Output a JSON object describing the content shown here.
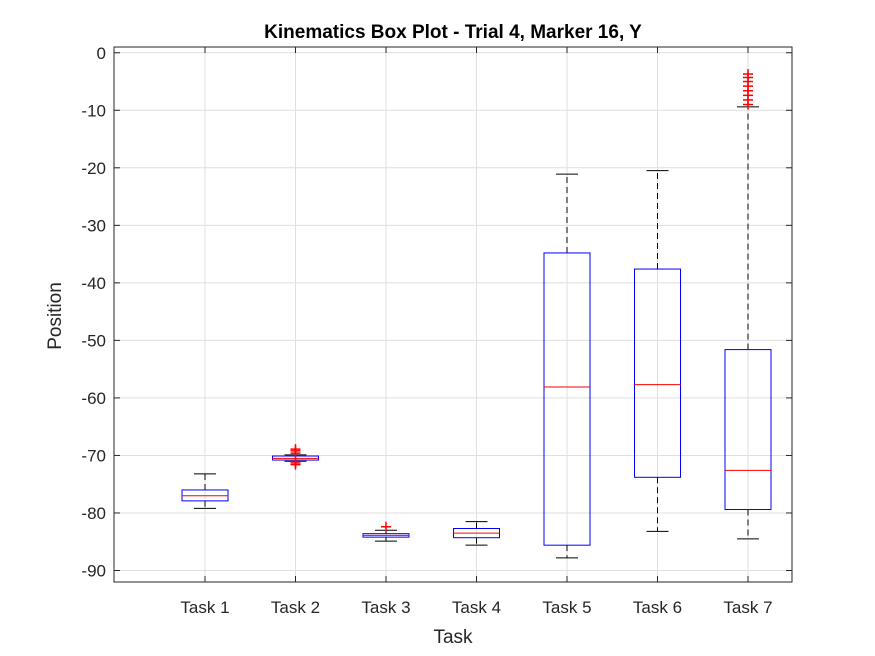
{
  "chart_data": {
    "type": "box",
    "title": "Kinematics Box Plot - Trial 4, Marker 16, Y",
    "xlabel": "Task",
    "ylabel": "Position",
    "ylim": [
      -92,
      1
    ],
    "yticks": [
      0,
      -10,
      -20,
      -30,
      -40,
      -50,
      -60,
      -70,
      -80,
      -90
    ],
    "grid": true,
    "colors": {
      "box": "#0000ff",
      "median": "#ff0000",
      "whisker": "#000000",
      "outlier": "#ff0000",
      "grid": "#dfdfdf",
      "axis": "#262626"
    },
    "categories": [
      "Task 1",
      "Task 2",
      "Task 3",
      "Task 4",
      "Task 5",
      "Task 6",
      "Task 7"
    ],
    "boxes": [
      {
        "label": "Task 1",
        "whisker_low": -79.2,
        "q1": -77.9,
        "median": -77.0,
        "q3": -76.0,
        "whisker_high": -73.2,
        "outliers": []
      },
      {
        "label": "Task 2",
        "whisker_low": -71.0,
        "q1": -70.8,
        "median": -70.5,
        "q3": -70.1,
        "whisker_high": -69.9,
        "outliers": [
          -71.3,
          -71.6,
          -69.6,
          -69.2,
          -68.9
        ]
      },
      {
        "label": "Task 3",
        "whisker_low": -84.9,
        "q1": -84.2,
        "median": -83.9,
        "q3": -83.6,
        "whisker_high": -83.0,
        "outliers": [
          -82.4
        ]
      },
      {
        "label": "Task 4",
        "whisker_low": -85.6,
        "q1": -84.3,
        "median": -83.5,
        "q3": -82.7,
        "whisker_high": -81.5,
        "outliers": []
      },
      {
        "label": "Task 5",
        "whisker_low": -87.8,
        "q1": -85.6,
        "median": -58.1,
        "q3": -34.8,
        "whisker_high": -21.1,
        "outliers": []
      },
      {
        "label": "Task 6",
        "whisker_low": -83.2,
        "q1": -73.8,
        "median": -57.7,
        "q3": -37.6,
        "whisker_high": -20.5,
        "outliers": []
      },
      {
        "label": "Task 7",
        "whisker_low": -84.5,
        "q1": -79.4,
        "median": -72.6,
        "q3": -51.6,
        "whisker_high": -9.4,
        "outliers": [
          -9.0,
          -8.2,
          -7.4,
          -6.6,
          -5.8,
          -5.0,
          -4.3,
          -3.7
        ]
      }
    ]
  }
}
